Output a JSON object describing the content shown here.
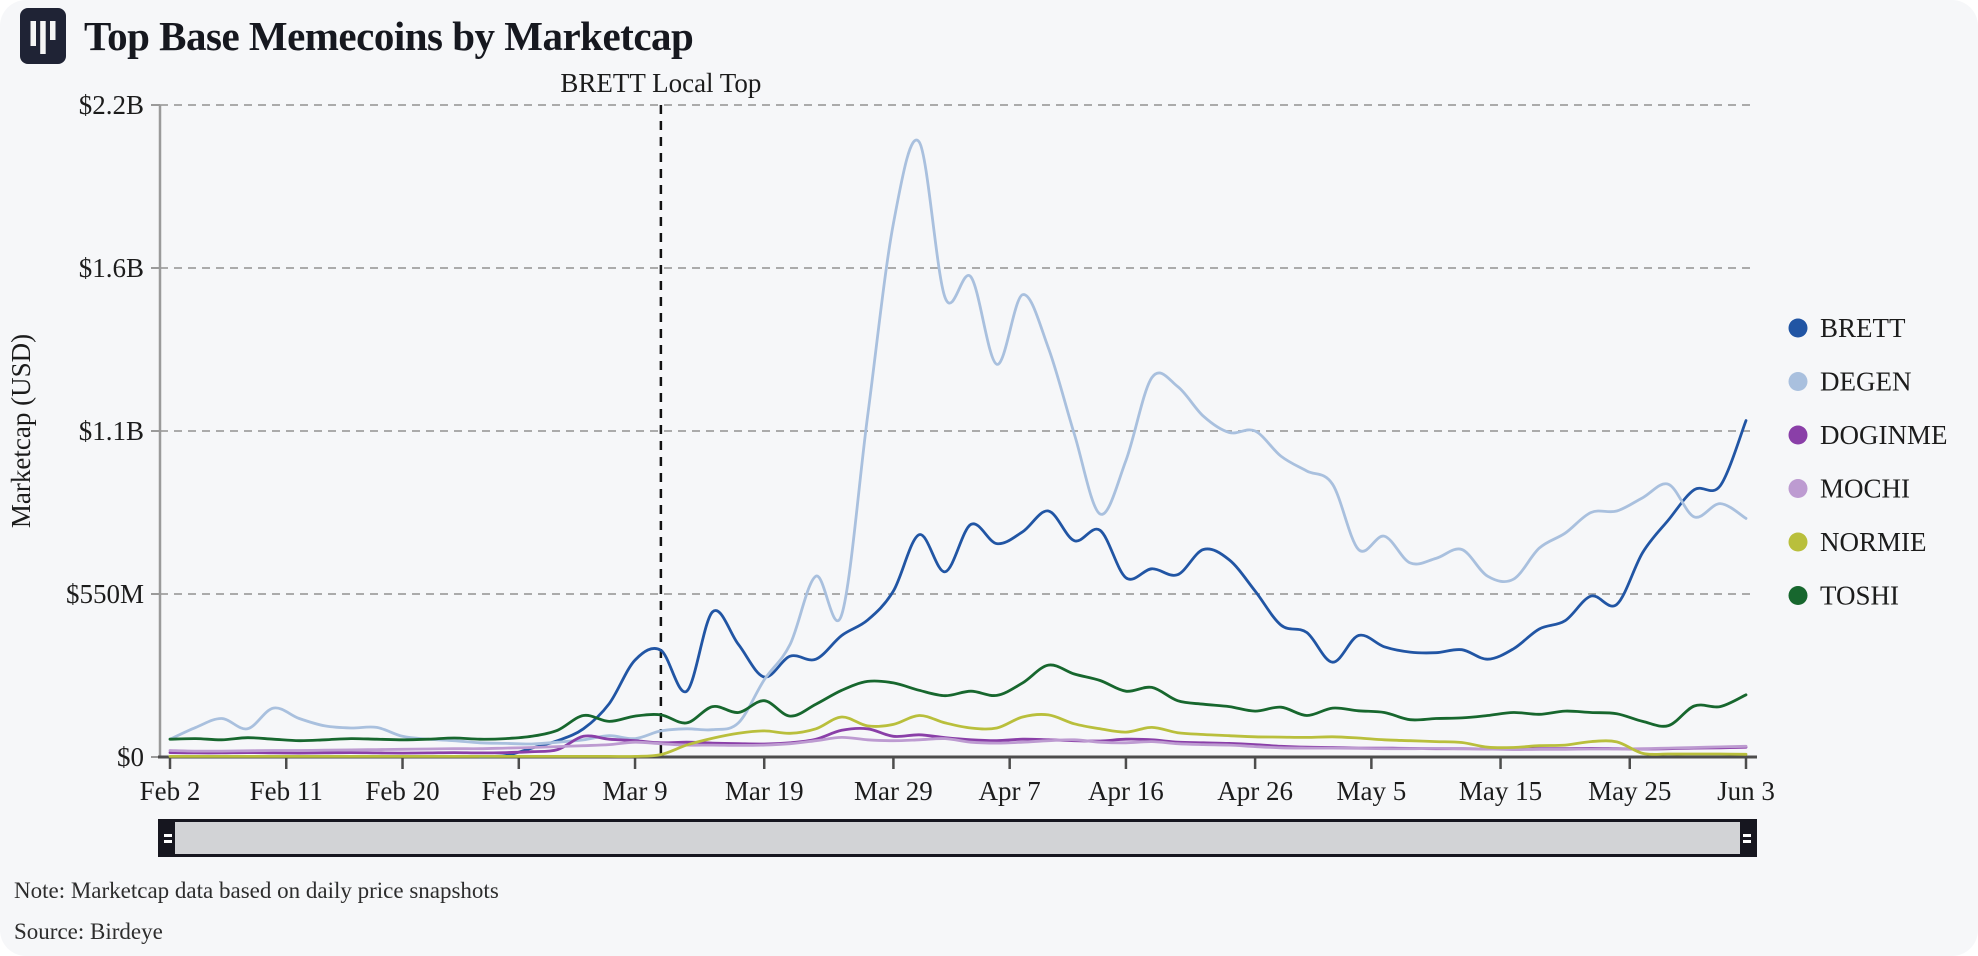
{
  "header": {
    "title": "Top Base Memecoins by Marketcap",
    "logo_icon": "bar-chart-logo"
  },
  "notes": {
    "note": "Note: Marketcap data based on daily price snapshots",
    "source": "Source: Birdeye"
  },
  "colors": {
    "background": "#f6f7f9",
    "gridline": "#ababab",
    "axis_spine_left": "#9a9a9a",
    "axis_spine_bottom": "#4d4d4d",
    "annotation_line": "#111111",
    "slider_track": "#d2d3d6",
    "slider_frame": "#16161f"
  },
  "chart_data": {
    "type": "line",
    "title": "Top Base Memecoins by Marketcap",
    "ylabel": "Marketcap (USD)",
    "unit": "millions of USD",
    "ylim": [
      0,
      2200
    ],
    "grid": "horizontal-dashed",
    "legend_position": "right",
    "y_ticks": [
      {
        "value": 0,
        "label": "$0"
      },
      {
        "value": 550,
        "label": "$550M"
      },
      {
        "value": 1100,
        "label": "$1.1B"
      },
      {
        "value": 1650,
        "label": "$1.6B"
      },
      {
        "value": 2200,
        "label": "$2.2B"
      }
    ],
    "x_tick_labels": [
      "Feb 2",
      "Feb 11",
      "Feb 20",
      "Feb 29",
      "Mar 9",
      "Mar 19",
      "Mar 29",
      "Apr 7",
      "Apr 16",
      "Apr 26",
      "May 5",
      "May 15",
      "May 25",
      "Jun 3"
    ],
    "x_tick_days": [
      0,
      9,
      18,
      27,
      36,
      46,
      56,
      65,
      74,
      84,
      93,
      103,
      113,
      122
    ],
    "x_days_span": 122,
    "annotation": {
      "label": "BRETT Local Top",
      "date": "Mar 10",
      "day": 38
    },
    "dates": [
      "Feb 2",
      "Feb 4",
      "Feb 6",
      "Feb 8",
      "Feb 10",
      "Feb 12",
      "Feb 14",
      "Feb 16",
      "Feb 18",
      "Feb 20",
      "Feb 22",
      "Feb 24",
      "Feb 26",
      "Feb 28",
      "Mar 1",
      "Mar 3",
      "Mar 5",
      "Mar 7",
      "Mar 9",
      "Mar 11",
      "Mar 13",
      "Mar 15",
      "Mar 17",
      "Mar 19",
      "Mar 21",
      "Mar 23",
      "Mar 25",
      "Mar 27",
      "Mar 29",
      "Mar 31",
      "Apr 2",
      "Apr 4",
      "Apr 6",
      "Apr 8",
      "Apr 10",
      "Apr 12",
      "Apr 14",
      "Apr 16",
      "Apr 18",
      "Apr 20",
      "Apr 22",
      "Apr 24",
      "Apr 26",
      "Apr 28",
      "Apr 30",
      "May 2",
      "May 4",
      "May 6",
      "May 8",
      "May 10",
      "May 12",
      "May 14",
      "May 16",
      "May 18",
      "May 20",
      "May 22",
      "May 24",
      "May 26",
      "May 28",
      "May 30",
      "Jun 1",
      "Jun 3"
    ],
    "series": [
      {
        "name": "BRETT",
        "color": "#2155a4",
        "values": [
          null,
          null,
          null,
          null,
          null,
          null,
          null,
          null,
          null,
          null,
          null,
          null,
          1,
          5,
          30,
          55,
          95,
          180,
          327,
          360,
          222,
          490,
          380,
          270,
          340,
          330,
          410,
          462,
          560,
          750,
          625,
          785,
          720,
          760,
          830,
          730,
          765,
          605,
          635,
          615,
          700,
          665,
          560,
          445,
          420,
          320,
          410,
          372,
          354,
          352,
          362,
          330,
          365,
          432,
          460,
          543,
          515,
          690,
          800,
          902,
          915,
          1135
        ]
      },
      {
        "name": "DEGEN",
        "color": "#a9c0de",
        "values": [
          60,
          100,
          130,
          95,
          165,
          130,
          105,
          98,
          100,
          70,
          60,
          55,
          48,
          46,
          44,
          50,
          58,
          72,
          62,
          88,
          95,
          92,
          115,
          260,
          380,
          610,
          480,
          1150,
          1800,
          2075,
          1550,
          1620,
          1325,
          1560,
          1380,
          1090,
          820,
          1000,
          1280,
          1250,
          1150,
          1095,
          1100,
          1015,
          965,
          920,
          700,
          745,
          655,
          670,
          700,
          610,
          600,
          705,
          755,
          825,
          830,
          875,
          920,
          810,
          855,
          805
        ]
      },
      {
        "name": "DOGINME",
        "color": "#8a3fa8",
        "values": [
          15,
          14,
          14,
          15,
          14,
          13,
          14,
          15,
          14,
          13,
          14,
          15,
          14,
          15,
          18,
          25,
          70,
          60,
          55,
          48,
          50,
          47,
          45,
          44,
          48,
          60,
          90,
          95,
          70,
          75,
          65,
          58,
          55,
          60,
          58,
          55,
          54,
          60,
          58,
          50,
          48,
          46,
          42,
          36,
          33,
          32,
          30,
          30,
          29,
          28,
          28,
          27,
          27,
          28,
          28,
          29,
          28,
          27,
          28,
          30,
          31,
          33
        ]
      },
      {
        "name": "MOCHI",
        "color": "#bd9bd1",
        "values": [
          22,
          20,
          20,
          21,
          22,
          22,
          23,
          24,
          25,
          26,
          27,
          28,
          28,
          30,
          32,
          35,
          38,
          42,
          50,
          45,
          40,
          40,
          39,
          40,
          45,
          55,
          66,
          58,
          55,
          58,
          62,
          50,
          47,
          50,
          55,
          58,
          50,
          48,
          52,
          45,
          42,
          40,
          35,
          31,
          30,
          30,
          29,
          28,
          28,
          29,
          28,
          27,
          25,
          26,
          26,
          27,
          27,
          28,
          30,
          32,
          34,
          36
        ]
      },
      {
        "name": "NORMIE",
        "color": "#b9bf3c",
        "values": [
          2,
          2,
          2,
          2,
          2,
          2,
          2,
          2,
          2,
          2,
          2,
          2,
          2,
          2,
          2,
          2,
          2,
          2,
          2,
          8,
          40,
          63,
          80,
          88,
          80,
          95,
          135,
          105,
          110,
          140,
          115,
          98,
          98,
          135,
          142,
          112,
          95,
          84,
          100,
          82,
          76,
          72,
          68,
          67,
          66,
          68,
          64,
          58,
          55,
          52,
          49,
          33,
          32,
          38,
          40,
          52,
          51,
          12,
          10,
          10,
          10,
          9
        ]
      },
      {
        "name": "TOSHI",
        "color": "#17672e",
        "values": [
          60,
          62,
          58,
          65,
          60,
          55,
          58,
          62,
          60,
          58,
          60,
          64,
          60,
          62,
          70,
          90,
          140,
          120,
          138,
          142,
          115,
          170,
          150,
          190,
          138,
          178,
          225,
          255,
          250,
          225,
          207,
          222,
          208,
          250,
          310,
          280,
          258,
          222,
          235,
          190,
          178,
          170,
          155,
          168,
          140,
          165,
          156,
          150,
          126,
          130,
          132,
          140,
          150,
          144,
          155,
          150,
          146,
          120,
          106,
          172,
          170,
          210
        ]
      }
    ]
  },
  "slider": {
    "label": "date-range-scrollbar",
    "range_start": "Feb 2",
    "range_end": "Jun 3"
  }
}
